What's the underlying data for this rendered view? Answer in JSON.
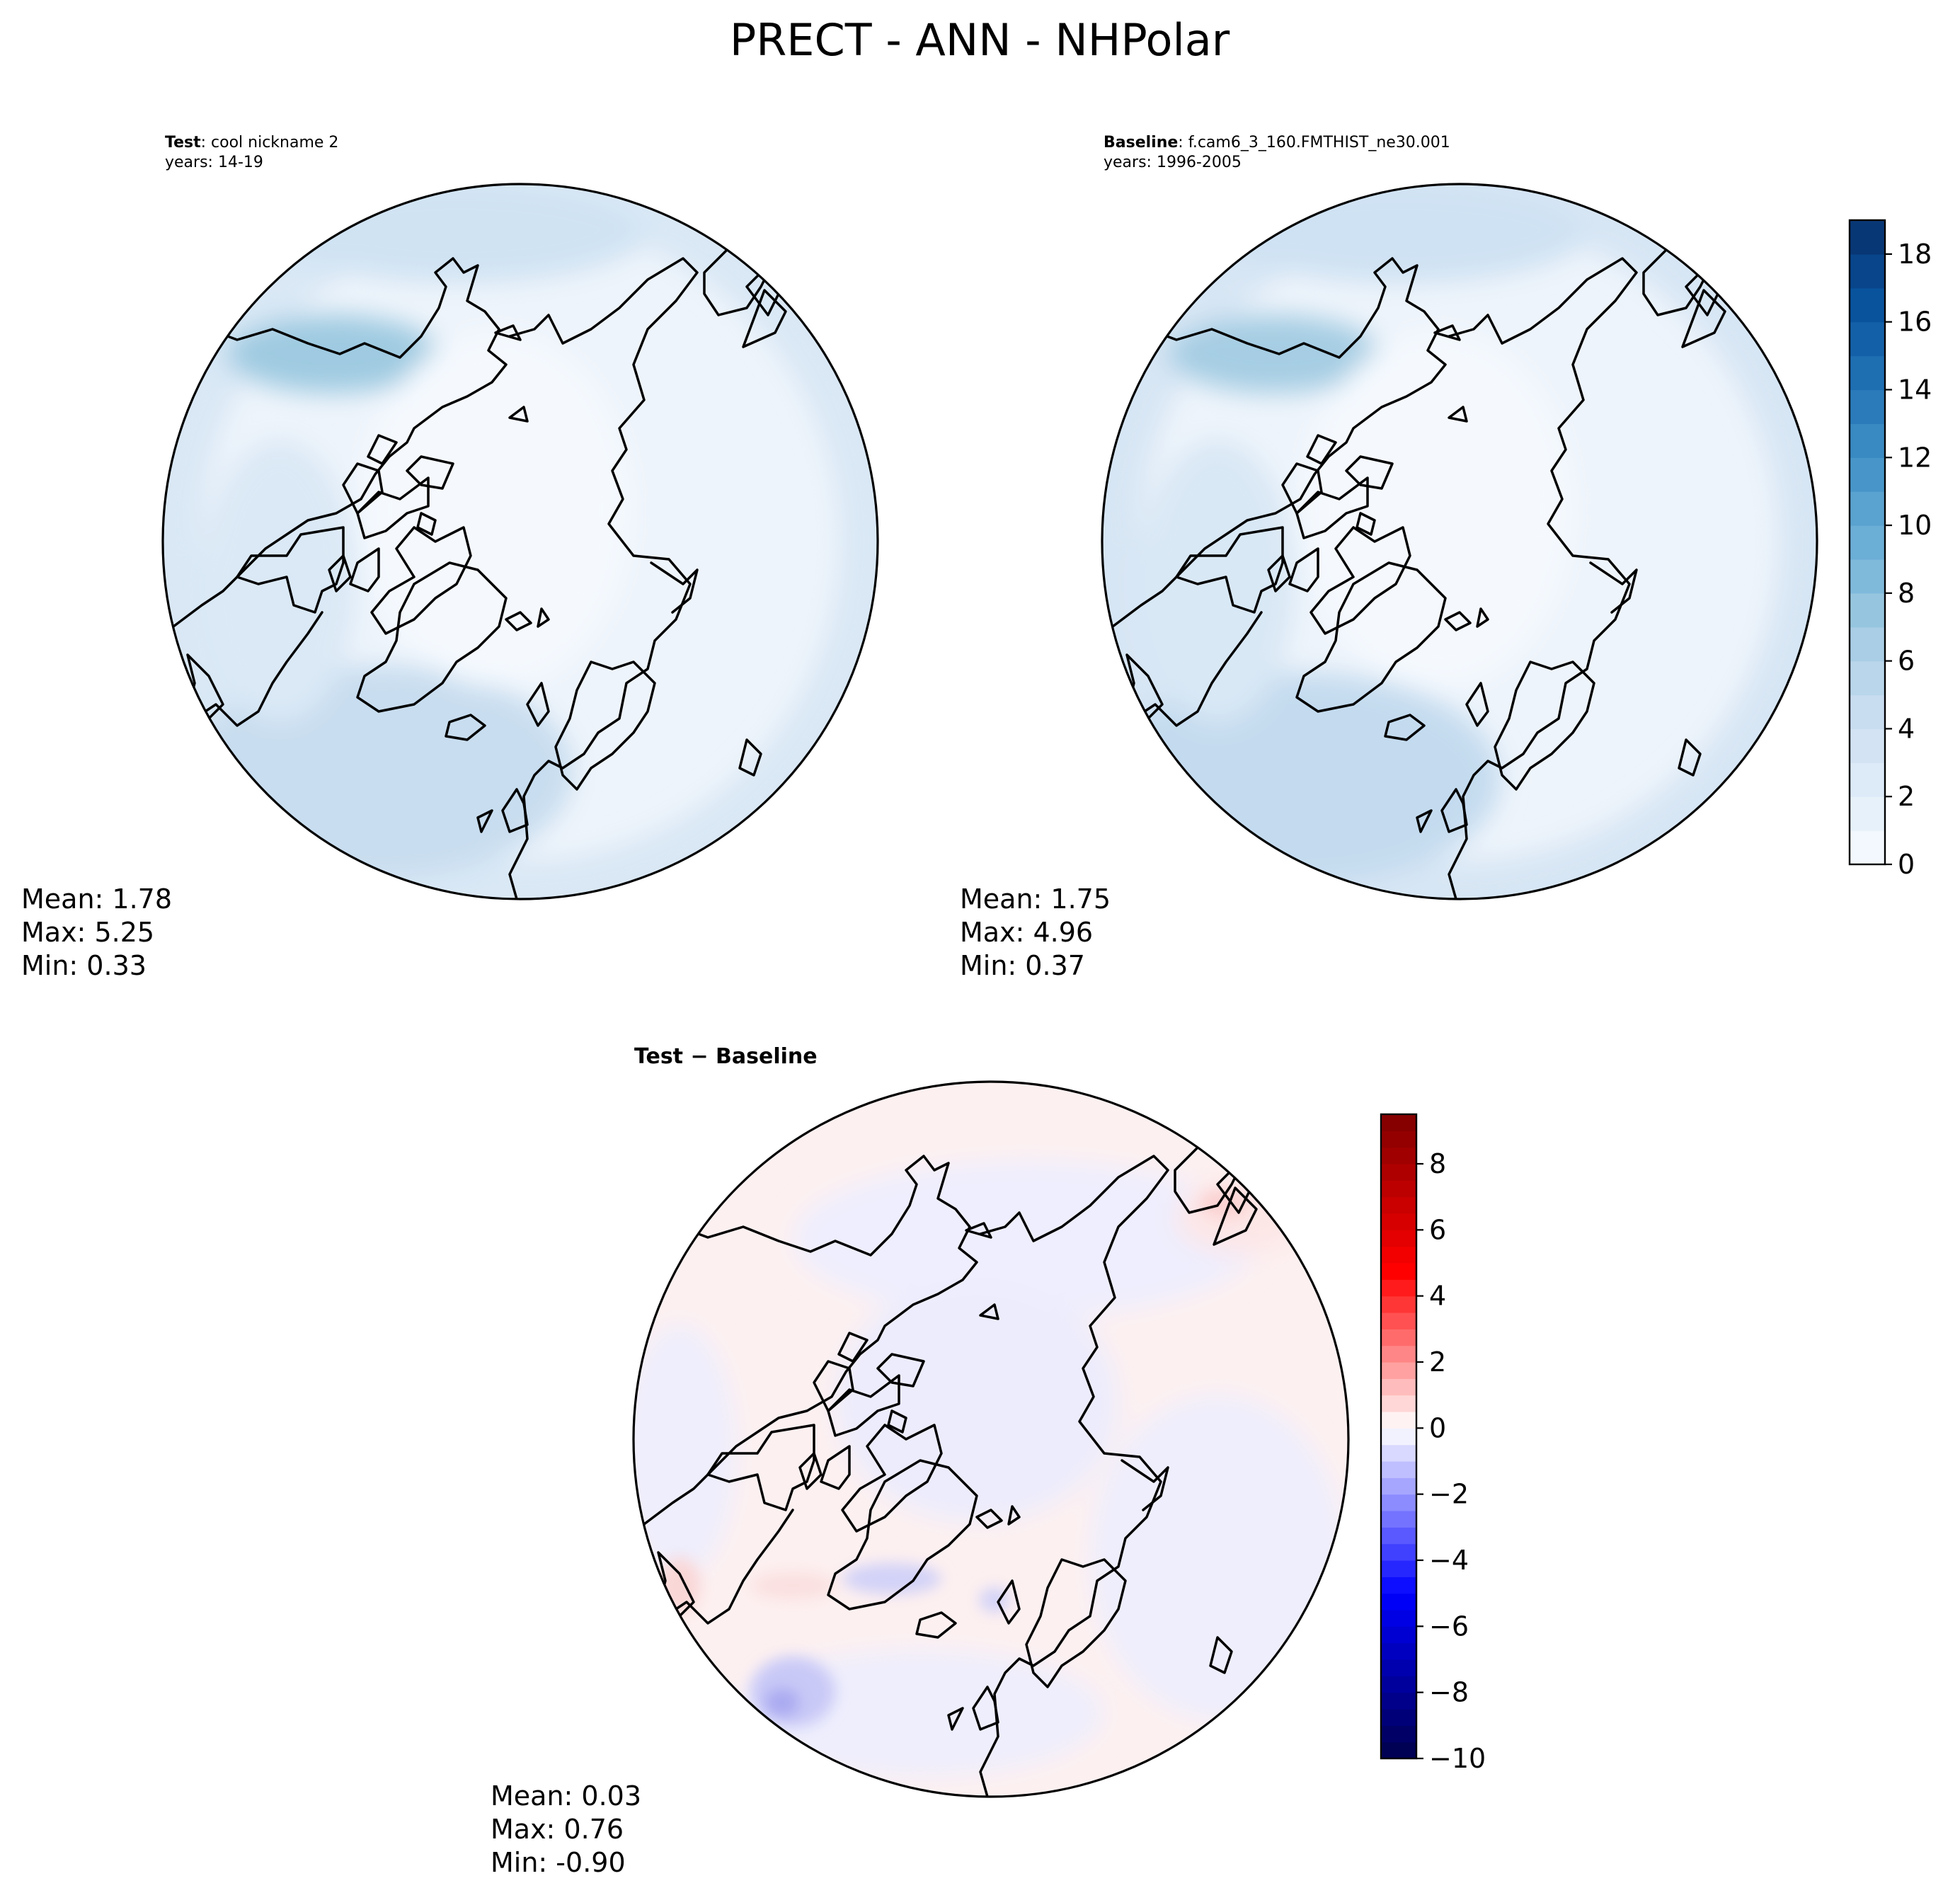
{
  "figure": {
    "title": "PRECT - ANN - NHPolar"
  },
  "chart_data": [
    {
      "type": "heatmap",
      "projection": "north-polar-stereographic",
      "label_bold": "Test",
      "label_rest": ": cool nickname 2",
      "years": "years: 14-19",
      "stats": {
        "mean": "Mean:  1.78",
        "max": "Max:  5.25",
        "min": "Min:  0.33"
      },
      "mean": 1.78,
      "max": 5.25,
      "min": 0.33,
      "colormap": "Blues",
      "vmin": 0,
      "vmax": 19
    },
    {
      "type": "heatmap",
      "projection": "north-polar-stereographic",
      "label_bold": "Baseline",
      "label_rest": ": f.cam6_3_160.FMTHIST_ne30.001",
      "years": "years: 1996-2005",
      "stats": {
        "mean": "Mean:  1.75",
        "max": "Max:  4.96",
        "min": "Min:  0.37"
      },
      "mean": 1.75,
      "max": 4.96,
      "min": 0.37,
      "colormap": "Blues",
      "vmin": 0,
      "vmax": 19,
      "colorbar": {
        "ticks": [
          0,
          2,
          4,
          6,
          8,
          10,
          12,
          14,
          16,
          18
        ],
        "tick_labels": [
          "0",
          "2",
          "4",
          "6",
          "8",
          "10",
          "12",
          "14",
          "16",
          "18"
        ],
        "range": [
          0,
          19
        ],
        "levels": 19,
        "low_color": "#f7fbff",
        "high_color": "#08306b"
      }
    },
    {
      "type": "heatmap",
      "projection": "north-polar-stereographic",
      "label": "Test − Baseline",
      "stats": {
        "mean": "Mean:  0.03",
        "max": "Max:  0.76",
        "min": "Min: -0.90"
      },
      "mean": 0.03,
      "max": 0.76,
      "min": -0.9,
      "colormap": "seismic",
      "vmin": -10,
      "vmax": 9.5,
      "colorbar": {
        "ticks": [
          -10,
          -8,
          -6,
          -4,
          -2,
          0,
          2,
          4,
          6,
          8
        ],
        "tick_labels": [
          "−10",
          "−8",
          "−6",
          "−4",
          "−2",
          "0",
          "2",
          "4",
          "6",
          "8"
        ],
        "range": [
          -10,
          9.5
        ],
        "step": 0.5,
        "negative_color": "#00004c",
        "zero_color": "#ffffff",
        "positive_color": "#800000"
      }
    }
  ],
  "style": {
    "coastline_color": "#000000",
    "base_fill_polar": "#eef4fb",
    "base_fill_diff": "#fdf0f0"
  }
}
